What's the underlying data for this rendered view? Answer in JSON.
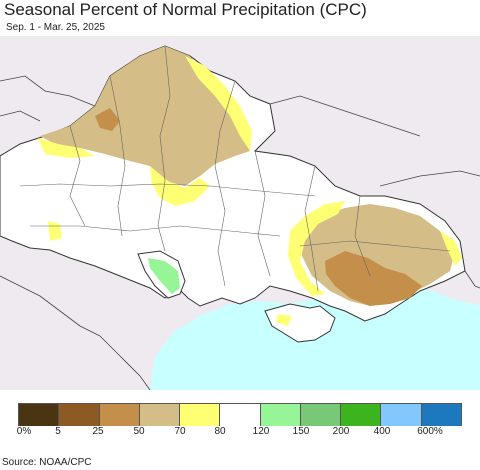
{
  "title": "Seasonal Percent of Normal Precipitation (CPC)",
  "subtitle": "Sep. 1 - Mar. 25, 2025",
  "source": "Source: NOAA/CPC",
  "legend": {
    "colors": [
      "#4a3512",
      "#8c5a22",
      "#c48f4a",
      "#d4bd86",
      "#ffff73",
      "#ffffff",
      "#96f596",
      "#78c878",
      "#3cb41e",
      "#82c8ff",
      "#1e78be"
    ],
    "ticks": [
      "0%",
      "5",
      "25",
      "50",
      "70",
      "80",
      "120",
      "150",
      "200",
      "400",
      "600%"
    ]
  },
  "map": {
    "sea_color": "#c8ffff",
    "outside_color": "#efeaef",
    "land_color": "#ffffff",
    "border_color": "#555555"
  }
}
